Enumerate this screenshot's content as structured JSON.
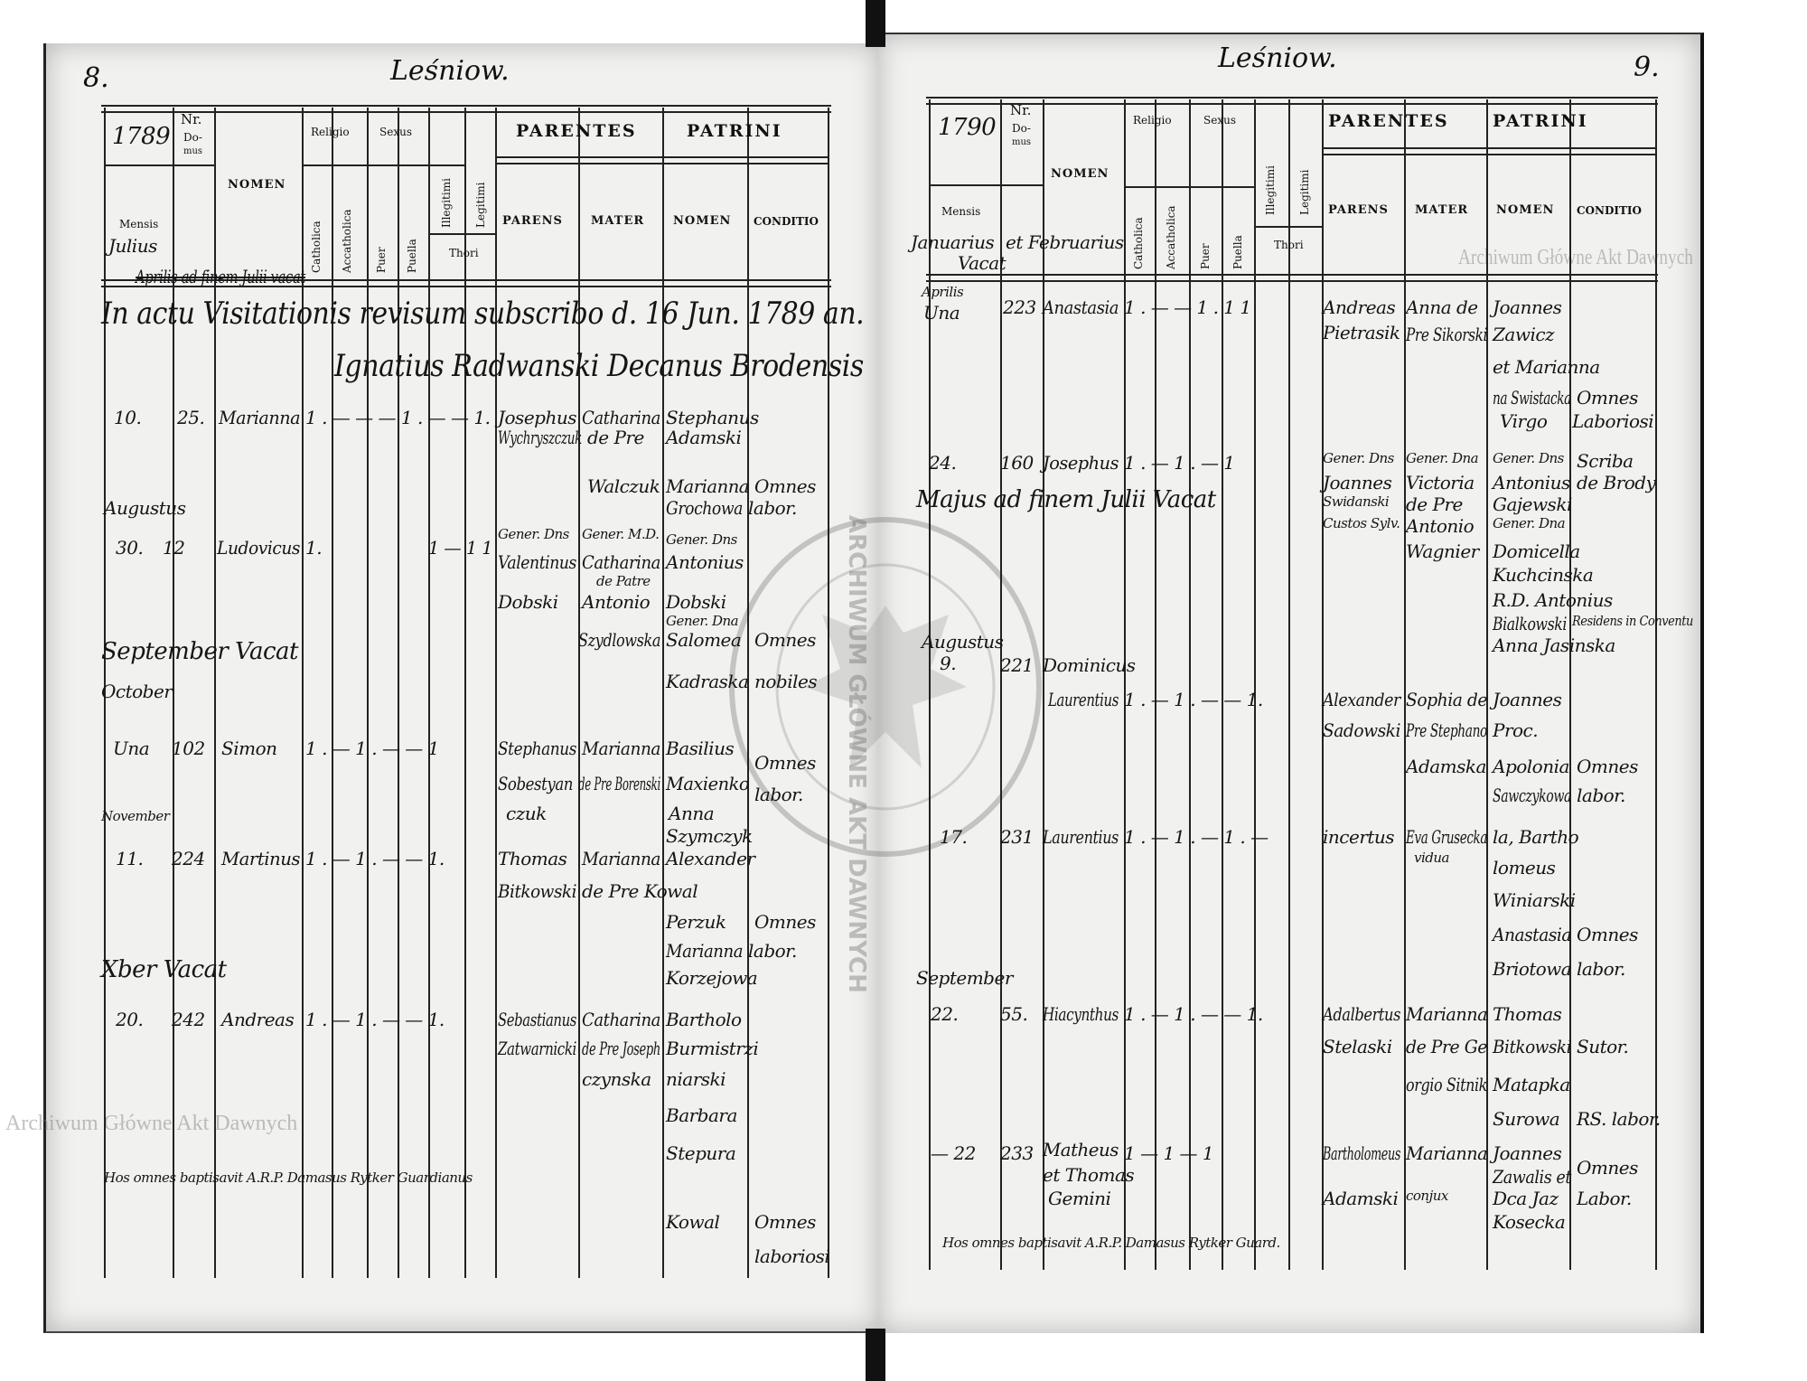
{
  "watermark": "Archiwum Główne Akt Dawnych",
  "seal_text": "ARCHIWUM GŁÓWNE AKT DAWNYCH",
  "headers": {
    "title": "Leśniow.",
    "nr": "Nr.",
    "domus_1": "Do-",
    "domus_2": "mus",
    "mensis": "Mensis",
    "nomen": "NOMEN",
    "religio": "Religio",
    "sexus": "Sexus",
    "catholica": "Catholica",
    "acatholica": "Accatholica",
    "puer": "Puer",
    "puella": "Puella",
    "illegitimi": "Illegitimi",
    "legitimi": "Legitimi",
    "thori": "Thori",
    "parentes": "PARENTES",
    "patrini": "PATRINI",
    "parens": "PARENS",
    "mater": "MATER",
    "patrini_nomen": "NOMEN",
    "conditio": "CONDITIO"
  },
  "left": {
    "page_number": "8.",
    "year": "1789",
    "month_header": "Julius",
    "writing": [
      "Aprilis ad finem Julii vacat",
      "In actu Visitationis revisum subscribo d. 16 Jun. 1789 an.",
      "Ignatius Radwanski Decanus Brodensis",
      "10.",
      "25.",
      "Marianna",
      "1 . — — — 1 . — — 1.",
      "Josephus",
      "Catharina",
      "Stephanus",
      "Wychryszczuk",
      "de Pre",
      "Adamski",
      "Walczuk",
      "Marianna",
      "Omnes",
      "Grochowa",
      "labor.",
      "Augustus",
      "30.",
      "12",
      "Ludovicus",
      "1.",
      "1 — 1 1",
      "Gener. Dns",
      "Gener. M.D.",
      "Gener. Dns",
      "Valentinus",
      "Catharina",
      "Antonius",
      "de Patre",
      "Dobski",
      "Antonio",
      "Dobski",
      "Gener. Dna",
      "Szydlowska",
      "Salomea",
      "Omnes",
      "September Vacat",
      "October",
      "Kadraska",
      "nobiles",
      "Una",
      "102",
      "Simon",
      "1 . — 1 . — — 1",
      "Stephanus",
      "Marianna",
      "Basilius",
      "Omnes",
      "Sobestyan",
      "de Pre Borenski",
      "Maxienko",
      "labor.",
      "czuk",
      "Anna",
      "Szymczyk",
      "November",
      "11.",
      "224",
      "Martinus",
      "1 . — 1 . — — 1.",
      "Thomas",
      "Marianna",
      "Alexander",
      "Bitkowski",
      "de Pre Kowal",
      "Perzuk",
      "Omnes",
      "Marianna",
      "labor.",
      "Korzejowa",
      "Xber Vacat",
      "20.",
      "242",
      "Andreas",
      "1 . — 1 . — — 1.",
      "Sebastianus",
      "Catharina",
      "Bartholo",
      "Zatwarnicki",
      "de Pre Joseph",
      "Burmistrzi",
      "czynska",
      "niarski",
      "Barbara",
      "Stepura",
      "Kowal",
      "Omnes",
      "laboriosi",
      "Hos omnes baptisavit A.R.P. Damasus Rytker Guardianus"
    ]
  },
  "right": {
    "page_number": "9.",
    "year": "1790",
    "month_header": "Januarius et Februarius Vacat",
    "writing": [
      "Januarius",
      "et Februarius",
      "Vacat",
      "Aprilis",
      "Una",
      "223",
      "Anastasia",
      "1 . — — 1 . 1 1",
      "Andreas",
      "Anna de",
      "Joannes",
      "Pietrasik",
      "Pre Sikorski",
      "Zawicz",
      "et Marianna",
      "na Swistacka",
      "Omnes",
      "Virgo",
      "Laboriosi",
      "24.",
      "160",
      "Josephus",
      "1 . — 1 . — 1",
      "Gener. Dns",
      "Gener. Dna",
      "Gener. Dns",
      "Scriba",
      "Joannes",
      "Victoria",
      "Antonius",
      "de Brody",
      "Majus ad finem Julii Vacat",
      "Swidanski",
      "de Pre",
      "Gajewski",
      "Custos Sylv.",
      "Antonio",
      "Gener. Dna",
      "Wagnier",
      "Domicella",
      "Kuchcinska",
      "R.D. Antonius",
      "Bialkowski",
      "Residens in Conventu",
      "Anna Jasinska",
      "Augustus",
      "9.",
      "221",
      "Dominicus",
      "Laurentius",
      "1 . — 1 . — — 1.",
      "Alexander",
      "Sophia de",
      "Joannes",
      "Sadowski",
      "Pre Stephano",
      "Proc.",
      "Adamska",
      "Apolonia",
      "Omnes",
      "Sawczykowa",
      "labor.",
      "17.",
      "231",
      "Laurentius",
      "1 . — 1 . — 1 . —",
      "incertus",
      "Eva Grusecka",
      "la, Bartho",
      "vidua",
      "lomeus",
      "Winiarski",
      "Anastasia",
      "Omnes",
      "Briotowa",
      "labor.",
      "September",
      "22.",
      "55.",
      "Hiacynthus",
      "1 . — 1 . — — 1.",
      "Adalbertus",
      "Marianna",
      "Thomas",
      "Stelaski",
      "de Pre Ge",
      "Bitkowski",
      "Sutor.",
      "orgio Sitnik",
      "Matapka",
      "Surowa",
      "RS. labor.",
      "— 22",
      "233",
      "Matheus",
      "1 — 1 — 1",
      "Bartholomeus",
      "Marianna",
      "Joannes",
      "et Thomas",
      "Zawalis et",
      "Omnes",
      "Gemini",
      "Adamski",
      "conjux",
      "Dca Jaz",
      "Labor.",
      "Kosecka",
      "Hos omnes baptisavit A.R.P. Damasus Rytker Guard."
    ]
  }
}
